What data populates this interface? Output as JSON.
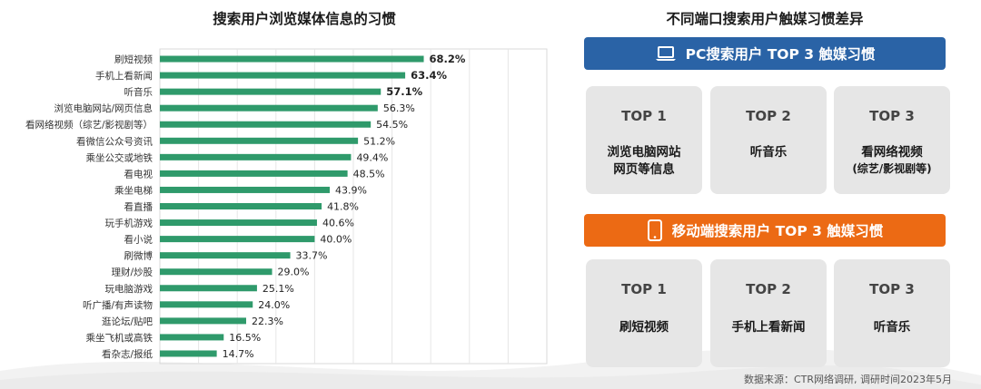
{
  "left_chart": {
    "title": "搜索用户浏览媒体信息的习惯"
  },
  "chart_data": {
    "type": "bar",
    "orientation": "horizontal",
    "title": "搜索用户浏览媒体信息的习惯",
    "categories": [
      "刷短视频",
      "手机上看新闻",
      "听音乐",
      "浏览电脑网站/网页信息",
      "看网络视频（综艺/影视剧等）",
      "看微信公众号资讯",
      "乘坐公交或地铁",
      "看电视",
      "乘坐电梯",
      "看直播",
      "玩手机游戏",
      "看小说",
      "刷微博",
      "理财/炒股",
      "玩电脑游戏",
      "听广播/有声读物",
      "逛论坛/贴吧",
      "乘坐飞机或高铁",
      "看杂志/报纸"
    ],
    "values": [
      68.2,
      63.4,
      57.1,
      56.3,
      54.5,
      51.2,
      49.4,
      48.5,
      43.9,
      41.8,
      40.6,
      40.0,
      33.7,
      29.0,
      25.1,
      24.0,
      22.3,
      16.5,
      14.7
    ],
    "value_labels": [
      "68.2%",
      "63.4%",
      "57.1%",
      "56.3%",
      "54.5%",
      "51.2%",
      "49.4%",
      "48.5%",
      "43.9%",
      "41.8%",
      "40.6%",
      "40.0%",
      "33.7%",
      "29.0%",
      "25.1%",
      "24.0%",
      "22.3%",
      "16.5%",
      "14.7%"
    ],
    "bold_labels": [
      true,
      true,
      true,
      false,
      false,
      false,
      false,
      false,
      false,
      false,
      false,
      false,
      false,
      false,
      false,
      false,
      false,
      false,
      false
    ],
    "xlim": [
      0,
      100
    ],
    "grid": true,
    "bar_color": "#2f9a6b"
  },
  "right_panel": {
    "title": "不同端口搜索用户触媒习惯差异",
    "pc_banner": {
      "text": "PC搜索用户 TOP 3 触媒习惯",
      "icon": "laptop-icon",
      "color": "#2a63a6"
    },
    "pc_cards": [
      {
        "rank": "TOP 1",
        "line1": "浏览电脑网站",
        "line2": "网页等信息"
      },
      {
        "rank": "TOP 2",
        "line1": "听音乐",
        "line2": ""
      },
      {
        "rank": "TOP 3",
        "line1": "看网络视频",
        "line2": "(综艺/影视剧等)"
      }
    ],
    "mobile_banner": {
      "text": "移动端搜索用户 TOP 3 触媒习惯",
      "icon": "smartphone-icon",
      "color": "#ec6a14"
    },
    "mobile_cards": [
      {
        "rank": "TOP 1",
        "line1": "刷短视频"
      },
      {
        "rank": "TOP 2",
        "line1": "手机上看新闻"
      },
      {
        "rank": "TOP 3",
        "line1": "听音乐"
      }
    ]
  },
  "source": "数据来源：CTR网络调研, 调研时间2023年5月"
}
